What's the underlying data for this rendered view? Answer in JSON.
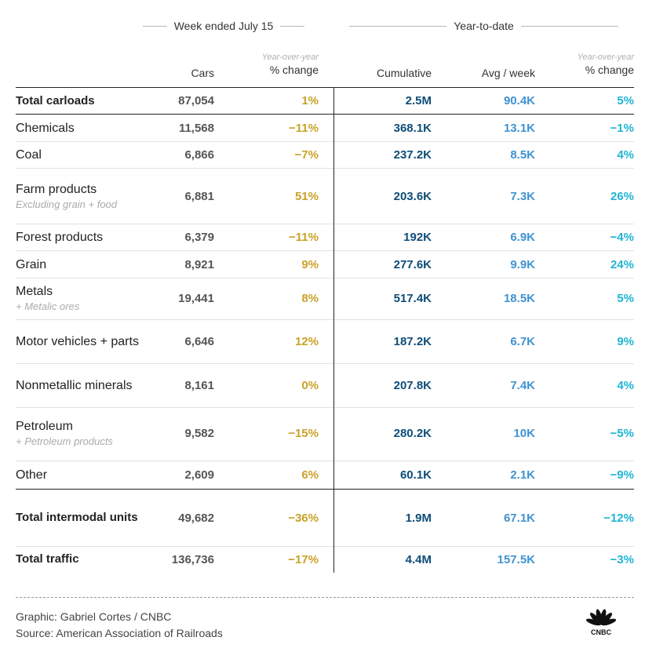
{
  "header": {
    "week_group": "Week ended July 15",
    "ytd_group": "Year-to-date",
    "columns": {
      "cars": "Cars",
      "week_change_note": "Year-over-year",
      "week_change": "% change",
      "cumulative": "Cumulative",
      "avg_week": "Avg / week",
      "ytd_change_note": "Year-over-year",
      "ytd_change": "% change"
    }
  },
  "rows": [
    {
      "name": "Total carloads",
      "sub": "",
      "cars": "87,054",
      "week_change": "1%",
      "cumulative": "2.5M",
      "avg_week": "90.4K",
      "ytd_change": "5%"
    },
    {
      "name": "Chemicals",
      "sub": "",
      "cars": "11,568",
      "week_change": "−11%",
      "cumulative": "368.1K",
      "avg_week": "13.1K",
      "ytd_change": "−1%"
    },
    {
      "name": "Coal",
      "sub": "",
      "cars": "6,866",
      "week_change": "−7%",
      "cumulative": "237.2K",
      "avg_week": "8.5K",
      "ytd_change": "4%"
    },
    {
      "name": "Farm products",
      "sub": "Excluding grain + food",
      "cars": "6,881",
      "week_change": "51%",
      "cumulative": "203.6K",
      "avg_week": "7.3K",
      "ytd_change": "26%"
    },
    {
      "name": "Forest products",
      "sub": "",
      "cars": "6,379",
      "week_change": "−11%",
      "cumulative": "192K",
      "avg_week": "6.9K",
      "ytd_change": "−4%"
    },
    {
      "name": "Grain",
      "sub": "",
      "cars": "8,921",
      "week_change": "9%",
      "cumulative": "277.6K",
      "avg_week": "9.9K",
      "ytd_change": "24%"
    },
    {
      "name": "Metals",
      "sub": "+ Metalic ores",
      "cars": "19,441",
      "week_change": "8%",
      "cumulative": "517.4K",
      "avg_week": "18.5K",
      "ytd_change": "5%"
    },
    {
      "name": "Motor vehicles + parts",
      "sub": "",
      "cars": "6,646",
      "week_change": "12%",
      "cumulative": "187.2K",
      "avg_week": "6.7K",
      "ytd_change": "9%"
    },
    {
      "name": "Nonmetallic minerals",
      "sub": "",
      "cars": "8,161",
      "week_change": "0%",
      "cumulative": "207.8K",
      "avg_week": "7.4K",
      "ytd_change": "4%"
    },
    {
      "name": "Petroleum",
      "sub": "+ Petroleum products",
      "cars": "9,582",
      "week_change": "−15%",
      "cumulative": "280.2K",
      "avg_week": "10K",
      "ytd_change": "−5%"
    },
    {
      "name": "Other",
      "sub": "",
      "cars": "2,609",
      "week_change": "6%",
      "cumulative": "60.1K",
      "avg_week": "2.1K",
      "ytd_change": "−9%"
    },
    {
      "name": "Total intermodal units",
      "sub": "",
      "cars": "49,682",
      "week_change": "−36%",
      "cumulative": "1.9M",
      "avg_week": "67.1K",
      "ytd_change": "−12%"
    },
    {
      "name": "Total traffic",
      "sub": "",
      "cars": "136,736",
      "week_change": "−17%",
      "cumulative": "4.4M",
      "avg_week": "157.5K",
      "ytd_change": "−3%"
    }
  ],
  "footer": {
    "credit": "Graphic: Gabriel Cortes / CNBC",
    "source": "Source: American Association of Railroads",
    "logo_text": "CNBC"
  },
  "colors": {
    "week_change": "#c9a227",
    "cumulative": "#0f4d78",
    "avg_week": "#3f93d1",
    "ytd_change": "#20b4d4"
  }
}
